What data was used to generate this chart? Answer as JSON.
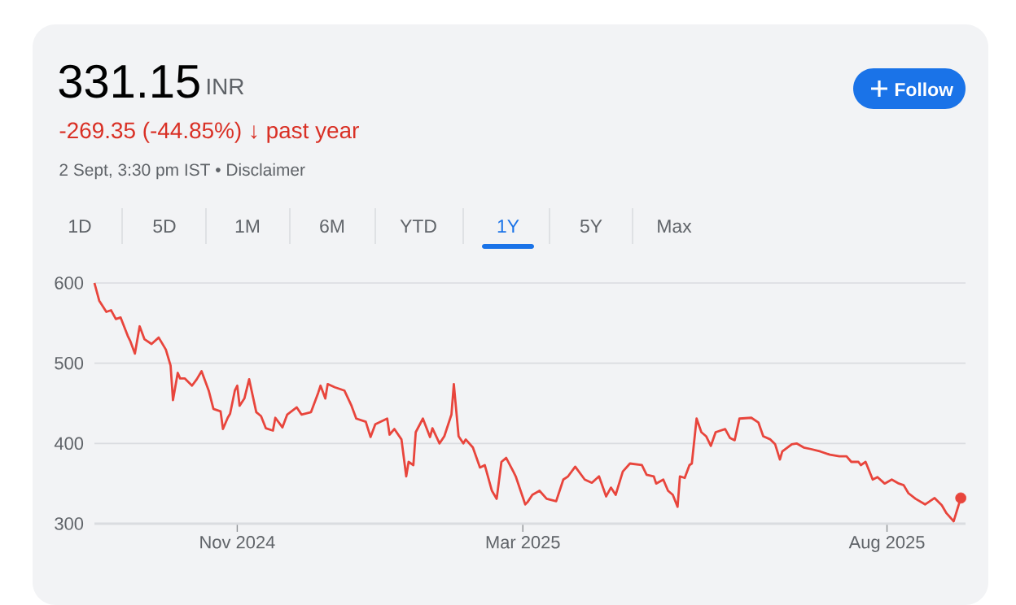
{
  "chart_data": {
    "type": "line",
    "title": "331.15",
    "subtitle": "INR",
    "annotations": [
      "-269.35 (-44.85%) ↓ past year",
      "2 Sept, 3:30 pm IST • Disclaimer",
      "Follow",
      "1D",
      "5D",
      "1M",
      "6M",
      "YTD",
      "1Y",
      "5Y",
      "Max"
    ],
    "xlim": [
      "2024-09-02",
      "2025-09-03"
    ],
    "xticks": [
      {
        "value": "2024-11-01",
        "label": "Nov 2024"
      },
      {
        "value": "2025-03-01",
        "label": "Mar 2025"
      },
      {
        "value": "2025-08-01",
        "label": "Aug 2025"
      }
    ],
    "ylim": [
      300,
      600
    ],
    "yticks": [
      300,
      400,
      500,
      600
    ],
    "grid": "y",
    "series": [
      {
        "color": "#e8453c",
        "x": [
          "2024-09-02",
          "2024-09-04",
          "2024-09-07",
          "2024-09-09",
          "2024-09-11",
          "2024-09-13",
          "2024-09-16",
          "2024-09-17",
          "2024-09-19",
          "2024-09-21",
          "2024-09-23",
          "2024-09-26",
          "2024-09-29",
          "2024-10-02",
          "2024-10-04",
          "2024-10-05",
          "2024-10-07",
          "2024-10-08",
          "2024-10-10",
          "2024-10-13",
          "2024-10-15",
          "2024-10-17",
          "2024-10-20",
          "2024-10-22",
          "2024-10-25",
          "2024-10-26",
          "2024-10-28",
          "2024-10-29",
          "2024-10-31",
          "2024-11-01",
          "2024-11-02",
          "2024-11-04",
          "2024-11-06",
          "2024-11-09",
          "2024-11-11",
          "2024-11-13",
          "2024-11-16",
          "2024-11-17",
          "2024-11-20",
          "2024-11-22",
          "2024-11-26",
          "2024-11-28",
          "2024-12-02",
          "2024-12-05",
          "2024-12-06",
          "2024-12-08",
          "2024-12-09",
          "2024-12-12",
          "2024-12-14",
          "2024-12-16",
          "2024-12-19",
          "2024-12-21",
          "2024-12-25",
          "2024-12-27",
          "2024-12-29",
          "2025-01-03",
          "2025-01-04",
          "2025-01-06",
          "2025-01-09",
          "2025-01-11",
          "2025-01-12",
          "2025-01-14",
          "2025-01-15",
          "2025-01-18",
          "2025-01-21",
          "2025-01-22",
          "2025-01-25",
          "2025-01-27",
          "2025-01-30",
          "2025-01-31",
          "2025-02-02",
          "2025-02-04",
          "2025-02-05",
          "2025-02-08",
          "2025-02-11",
          "2025-02-13",
          "2025-02-16",
          "2025-02-18",
          "2025-02-20",
          "2025-02-22",
          "2025-02-25",
          "2025-02-26",
          "2025-03-02",
          "2025-03-03",
          "2025-03-05",
          "2025-03-08",
          "2025-03-11",
          "2025-03-15",
          "2025-03-18",
          "2025-03-20",
          "2025-03-23",
          "2025-03-27",
          "2025-03-30",
          "2025-04-02",
          "2025-04-05",
          "2025-04-07",
          "2025-04-09",
          "2025-04-12",
          "2025-04-15",
          "2025-04-20",
          "2025-04-22",
          "2025-04-25",
          "2025-04-26",
          "2025-04-29",
          "2025-05-01",
          "2025-05-03",
          "2025-05-05",
          "2025-05-06",
          "2025-05-08",
          "2025-05-10",
          "2025-05-11",
          "2025-05-13",
          "2025-05-15",
          "2025-05-17",
          "2025-05-19",
          "2025-05-21",
          "2025-05-25",
          "2025-05-27",
          "2025-05-29",
          "2025-05-31",
          "2025-06-05",
          "2025-06-08",
          "2025-06-10",
          "2025-06-13",
          "2025-06-15",
          "2025-06-17",
          "2025-06-18",
          "2025-06-22",
          "2025-06-24",
          "2025-06-27",
          "2025-06-30",
          "2025-07-04",
          "2025-07-08",
          "2025-07-12",
          "2025-07-15",
          "2025-07-17",
          "2025-07-20",
          "2025-07-21",
          "2025-07-23",
          "2025-07-26",
          "2025-07-28",
          "2025-07-31",
          "2025-08-03",
          "2025-08-06",
          "2025-08-08",
          "2025-08-10",
          "2025-08-13",
          "2025-08-17",
          "2025-08-21",
          "2025-08-24",
          "2025-08-26",
          "2025-08-29",
          "2025-09-01"
        ],
        "values": [
          600,
          578,
          564,
          566,
          555,
          557,
          534,
          528,
          512,
          546,
          530,
          524,
          532,
          517,
          497,
          454,
          488,
          481,
          481,
          472,
          480,
          490,
          466,
          443,
          440,
          418,
          432,
          437,
          466,
          472,
          447,
          456,
          480,
          439,
          434,
          419,
          416,
          432,
          420,
          436,
          445,
          436,
          439,
          463,
          472,
          456,
          474,
          470,
          468,
          466,
          447,
          431,
          427,
          408,
          424,
          431,
          411,
          418,
          405,
          359,
          377,
          373,
          414,
          431,
          408,
          419,
          400,
          409,
          436,
          474,
          409,
          400,
          405,
          395,
          370,
          373,
          341,
          331,
          377,
          382,
          365,
          359,
          324,
          327,
          336,
          341,
          331,
          328,
          355,
          359,
          371,
          355,
          351,
          359,
          334,
          345,
          336,
          365,
          375,
          373,
          361,
          359,
          350,
          355,
          341,
          336,
          321,
          359,
          357,
          373,
          375,
          431,
          414,
          409,
          397,
          414,
          418,
          407,
          404,
          431,
          432,
          426,
          409,
          405,
          399,
          380,
          390,
          399,
          400,
          395,
          393,
          390,
          386,
          384,
          384,
          377,
          377,
          373,
          377,
          355,
          358,
          350,
          355,
          350,
          348,
          338,
          331,
          324,
          332,
          323,
          313,
          303,
          332
        ]
      },
      {
        "type": "scatter",
        "color": "#e8453c",
        "marker": "circle",
        "x": [
          "2025-09-01"
        ],
        "values": [
          332
        ]
      }
    ]
  }
}
